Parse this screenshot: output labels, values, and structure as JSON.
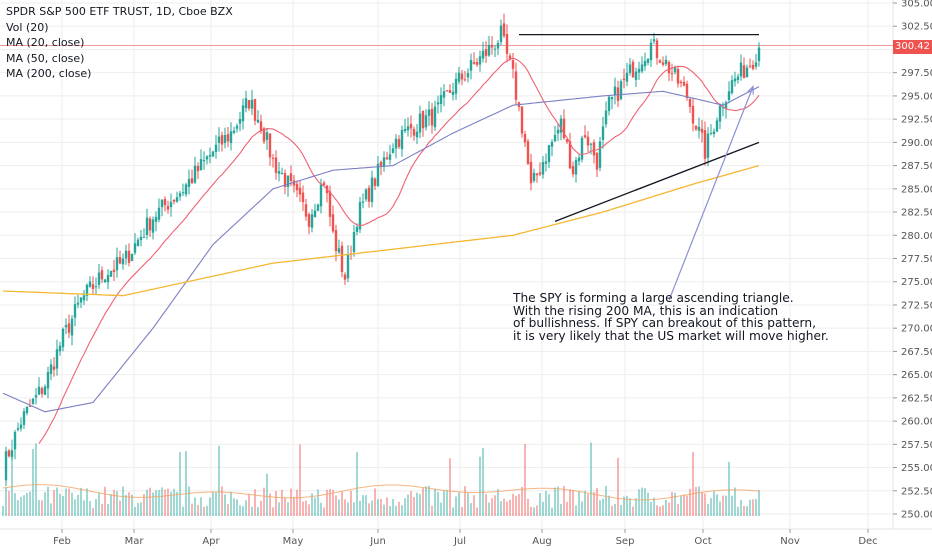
{
  "legend": {
    "symbol_line": "SPDR S&P 500 ETF TRUST, 1D, Cboe BZX",
    "vol": "Vol (20)",
    "ma20": "MA (20, close)",
    "ma50": "MA (50, close)",
    "ma200": "MA (200, close)"
  },
  "last_price": "300.42",
  "annotation": "The SPY is forming a large ascending triangle.\nWith the rising 200 MA, this is an indication\nof bullishness. If SPY can breakout of this pattern,\nit is very likely that the US market will move higher.",
  "colors": {
    "up": "#26a69a",
    "down": "#ef5350",
    "ma20": "#f06272",
    "ma50": "#7b7fc4",
    "ma200": "#f5b731",
    "trendline": "#131722",
    "arrow": "#8a8fd6",
    "grid": "#eeeeee"
  },
  "chart_data": {
    "type": "candlestick",
    "y_ticks": [
      "305.00",
      "302.50",
      "300.00",
      "297.50",
      "295.00",
      "292.50",
      "290.00",
      "287.50",
      "285.00",
      "282.50",
      "280.00",
      "277.50",
      "275.00",
      "272.50",
      "270.00",
      "267.50",
      "265.00",
      "262.50",
      "260.00",
      "257.50",
      "255.00",
      "252.50",
      "250.00"
    ],
    "ylim": [
      249,
      306
    ],
    "x_labels": [
      "Feb",
      "Mar",
      "Apr",
      "May",
      "Jun",
      "Jul",
      "Aug",
      "Sep",
      "Oct",
      "Nov",
      "Dec"
    ],
    "num_bars": 206,
    "price_anchors": [
      [
        0,
        255
      ],
      [
        6,
        260
      ],
      [
        14,
        264
      ],
      [
        20,
        269
      ],
      [
        26,
        273
      ],
      [
        34,
        276
      ],
      [
        40,
        277
      ],
      [
        46,
        280
      ],
      [
        50,
        282
      ],
      [
        60,
        285
      ],
      [
        70,
        289
      ],
      [
        76,
        291
      ],
      [
        82,
        294.5
      ],
      [
        86,
        292
      ],
      [
        90,
        288
      ],
      [
        96,
        285
      ],
      [
        102,
        282
      ],
      [
        107,
        286
      ],
      [
        110,
        280
      ],
      [
        114,
        275.5
      ],
      [
        118,
        282
      ],
      [
        124,
        286
      ],
      [
        130,
        290
      ],
      [
        138,
        292
      ],
      [
        144,
        293
      ],
      [
        150,
        296
      ],
      [
        156,
        298
      ],
      [
        162,
        300
      ],
      [
        166,
        301.5
      ],
      [
        170,
        297
      ],
      [
        174,
        290
      ],
      [
        176,
        285
      ],
      [
        180,
        288
      ],
      [
        186,
        292
      ],
      [
        190,
        287
      ],
      [
        194,
        291
      ],
      [
        198,
        288
      ],
      [
        202,
        294
      ],
      [
        206,
        296
      ],
      [
        210,
        298
      ],
      [
        216,
        300.5
      ],
      [
        220,
        299
      ],
      [
        224,
        297
      ],
      [
        228,
        295
      ],
      [
        232,
        291
      ],
      [
        234,
        289
      ],
      [
        238,
        293
      ],
      [
        242,
        296
      ],
      [
        246,
        297.5
      ],
      [
        250,
        299
      ],
      [
        252,
        300.4
      ]
    ],
    "ma200_anchors": [
      [
        0,
        274
      ],
      [
        40,
        273.5
      ],
      [
        90,
        277
      ],
      [
        130,
        278.5
      ],
      [
        170,
        280
      ],
      [
        200,
        282.5
      ],
      [
        230,
        285.5
      ],
      [
        252,
        287.5
      ]
    ],
    "ma50_anchors": [
      [
        0,
        263
      ],
      [
        14,
        261
      ],
      [
        30,
        262
      ],
      [
        50,
        270
      ],
      [
        70,
        279
      ],
      [
        90,
        285
      ],
      [
        110,
        287
      ],
      [
        130,
        287.5
      ],
      [
        150,
        291
      ],
      [
        170,
        294
      ],
      [
        185,
        294.5
      ],
      [
        200,
        295
      ],
      [
        220,
        295.5
      ],
      [
        240,
        294
      ],
      [
        252,
        296
      ]
    ],
    "trendlines": [
      [
        [
          172,
          301.6
        ],
        [
          252,
          301.6
        ]
      ],
      [
        [
          184,
          281.5
        ],
        [
          252,
          290
        ]
      ]
    ],
    "arrow": [
      [
        222,
        273
      ],
      [
        250,
        296
      ]
    ]
  }
}
